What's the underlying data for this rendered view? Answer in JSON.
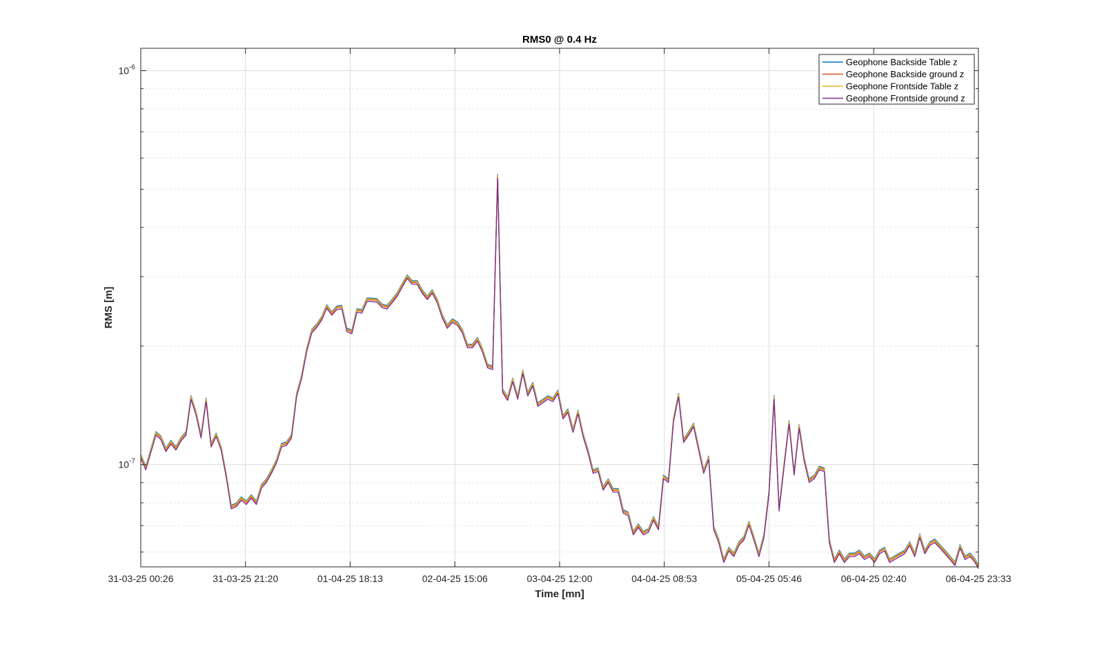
{
  "chart_data": {
    "type": "line",
    "title": "RMS0 @ 0.4 Hz",
    "xlabel": "Time [mn]",
    "ylabel": "RMS [m]",
    "yscale": "log",
    "ylim": [
      5.5e-08,
      1.14e-06
    ],
    "xlim": [
      0,
      1
    ],
    "grid": true,
    "legend_position": "top-right",
    "x_tick_labels": [
      "31-03-25 00:26",
      "31-03-25 21:20",
      "01-04-25 18:13",
      "02-04-25 15:06",
      "03-04-25 12:00",
      "04-04-25 08:53",
      "05-04-25 05:46",
      "06-04-25 02:40",
      "06-04-25 23:33"
    ],
    "y_ticks": [
      {
        "value": 1e-07,
        "base": "10",
        "exp": "-7"
      },
      {
        "value": 1e-06,
        "base": "10",
        "exp": "-6"
      }
    ],
    "series": [
      {
        "name": "Geophone Backside Table z",
        "color": "#0072BD",
        "offset": 1.01
      },
      {
        "name": "Geophone Backside ground z",
        "color": "#D95319",
        "offset": 1.0
      },
      {
        "name": "Geophone Frontside Table z",
        "color": "#EDB120",
        "offset": 1.005
      },
      {
        "name": "Geophone Frontside ground z",
        "color": "#7E2F8E",
        "offset": 0.99
      }
    ],
    "base_curve": [
      [
        0.0,
        1.05e-07
      ],
      [
        0.006,
        9.8e-08
      ],
      [
        0.018,
        1.2e-07
      ],
      [
        0.024,
        1.17e-07
      ],
      [
        0.03,
        1.09e-07
      ],
      [
        0.036,
        1.14e-07
      ],
      [
        0.042,
        1.1e-07
      ],
      [
        0.048,
        1.16e-07
      ],
      [
        0.054,
        1.2e-07
      ],
      [
        0.06,
        1.48e-07
      ],
      [
        0.066,
        1.35e-07
      ],
      [
        0.072,
        1.18e-07
      ],
      [
        0.078,
        1.46e-07
      ],
      [
        0.084,
        1.12e-07
      ],
      [
        0.09,
        1.19e-07
      ],
      [
        0.096,
        1.1e-07
      ],
      [
        0.102,
        9.4e-08
      ],
      [
        0.108,
        7.8e-08
      ],
      [
        0.114,
        7.9e-08
      ],
      [
        0.12,
        8.2e-08
      ],
      [
        0.126,
        8e-08
      ],
      [
        0.132,
        8.3e-08
      ],
      [
        0.138,
        8e-08
      ],
      [
        0.144,
        8.8e-08
      ],
      [
        0.15,
        9.1e-08
      ],
      [
        0.156,
        9.6e-08
      ],
      [
        0.162,
        1.02e-07
      ],
      [
        0.168,
        1.12e-07
      ],
      [
        0.174,
        1.13e-07
      ],
      [
        0.18,
        1.18e-07
      ],
      [
        0.186,
        1.5e-07
      ],
      [
        0.192,
        1.67e-07
      ],
      [
        0.198,
        1.95e-07
      ],
      [
        0.204,
        2.18e-07
      ],
      [
        0.21,
        2.25e-07
      ],
      [
        0.216,
        2.35e-07
      ],
      [
        0.222,
        2.52e-07
      ],
      [
        0.228,
        2.42e-07
      ],
      [
        0.234,
        2.5e-07
      ],
      [
        0.24,
        2.51e-07
      ],
      [
        0.246,
        2.2e-07
      ],
      [
        0.252,
        2.17e-07
      ],
      [
        0.258,
        2.46e-07
      ],
      [
        0.264,
        2.45e-07
      ],
      [
        0.27,
        2.62e-07
      ],
      [
        0.276,
        2.62e-07
      ],
      [
        0.282,
        2.61e-07
      ],
      [
        0.288,
        2.53e-07
      ],
      [
        0.294,
        2.51e-07
      ],
      [
        0.3,
        2.6e-07
      ],
      [
        0.306,
        2.7e-07
      ],
      [
        0.312,
        2.85e-07
      ],
      [
        0.318,
        3e-07
      ],
      [
        0.324,
        2.9e-07
      ],
      [
        0.33,
        2.9e-07
      ],
      [
        0.336,
        2.75e-07
      ],
      [
        0.342,
        2.65e-07
      ],
      [
        0.348,
        2.75e-07
      ],
      [
        0.354,
        2.6e-07
      ],
      [
        0.36,
        2.38e-07
      ],
      [
        0.366,
        2.24e-07
      ],
      [
        0.372,
        2.32e-07
      ],
      [
        0.378,
        2.28e-07
      ],
      [
        0.384,
        2.18e-07
      ],
      [
        0.39,
        2e-07
      ],
      [
        0.396,
        2e-07
      ],
      [
        0.402,
        2.08e-07
      ],
      [
        0.408,
        1.95e-07
      ],
      [
        0.414,
        1.78e-07
      ],
      [
        0.42,
        1.76e-07
      ],
      [
        0.426,
        5.4e-07
      ],
      [
        0.432,
        1.54e-07
      ],
      [
        0.438,
        1.47e-07
      ],
      [
        0.444,
        1.64e-07
      ],
      [
        0.45,
        1.48e-07
      ],
      [
        0.456,
        1.72e-07
      ],
      [
        0.462,
        1.51e-07
      ],
      [
        0.468,
        1.6e-07
      ],
      [
        0.474,
        1.42e-07
      ],
      [
        0.48,
        1.45e-07
      ],
      [
        0.486,
        1.48e-07
      ],
      [
        0.492,
        1.46e-07
      ],
      [
        0.498,
        1.53e-07
      ],
      [
        0.504,
        1.32e-07
      ],
      [
        0.51,
        1.37e-07
      ],
      [
        0.516,
        1.22e-07
      ],
      [
        0.522,
        1.36e-07
      ],
      [
        0.528,
        1.19e-07
      ],
      [
        0.534,
        1.08e-07
      ],
      [
        0.54,
        9.6e-08
      ],
      [
        0.546,
        9.7e-08
      ],
      [
        0.552,
        8.7e-08
      ],
      [
        0.558,
        9.1e-08
      ],
      [
        0.564,
        8.6e-08
      ],
      [
        0.57,
        8.6e-08
      ],
      [
        0.576,
        7.6e-08
      ],
      [
        0.582,
        7.5e-08
      ],
      [
        0.588,
        6.7e-08
      ],
      [
        0.594,
        7e-08
      ],
      [
        0.6,
        6.7e-08
      ],
      [
        0.606,
        6.8e-08
      ],
      [
        0.612,
        7.3e-08
      ],
      [
        0.618,
        6.9e-08
      ],
      [
        0.624,
        9.3e-08
      ],
      [
        0.63,
        9.1e-08
      ],
      [
        0.636,
        1.3e-07
      ],
      [
        0.642,
        1.5e-07
      ],
      [
        0.648,
        1.15e-07
      ],
      [
        0.654,
        1.2e-07
      ],
      [
        0.66,
        1.26e-07
      ],
      [
        0.666,
        1.1e-07
      ],
      [
        0.672,
        9.6e-08
      ],
      [
        0.678,
        1.04e-07
      ],
      [
        0.684,
        6.9e-08
      ],
      [
        0.69,
        6.4e-08
      ],
      [
        0.696,
        5.7e-08
      ],
      [
        0.702,
        6.1e-08
      ],
      [
        0.708,
        5.9e-08
      ],
      [
        0.714,
        6.3e-08
      ],
      [
        0.72,
        6.5e-08
      ],
      [
        0.726,
        7.1e-08
      ],
      [
        0.732,
        6.5e-08
      ],
      [
        0.738,
        5.9e-08
      ],
      [
        0.744,
        6.6e-08
      ],
      [
        0.75,
        8.5e-08
      ],
      [
        0.756,
        1.48e-07
      ],
      [
        0.762,
        7.7e-08
      ],
      [
        0.768,
        1e-07
      ],
      [
        0.774,
        1.28e-07
      ],
      [
        0.78,
        9.5e-08
      ],
      [
        0.786,
        1.25e-07
      ],
      [
        0.792,
        1.03e-07
      ],
      [
        0.798,
        9.1e-08
      ],
      [
        0.804,
        9.3e-08
      ],
      [
        0.81,
        9.8e-08
      ],
      [
        0.816,
        9.7e-08
      ],
      [
        0.822,
        6.4e-08
      ],
      [
        0.828,
        5.7e-08
      ],
      [
        0.834,
        6e-08
      ],
      [
        0.84,
        5.7e-08
      ],
      [
        0.846,
        5.9e-08
      ],
      [
        0.852,
        5.9e-08
      ],
      [
        0.858,
        6e-08
      ],
      [
        0.864,
        5.8e-08
      ],
      [
        0.87,
        5.9e-08
      ],
      [
        0.876,
        5.7e-08
      ],
      [
        0.882,
        6e-08
      ],
      [
        0.888,
        6.1e-08
      ],
      [
        0.894,
        5.7e-08
      ],
      [
        0.9,
        5.8e-08
      ],
      [
        0.906,
        5.9e-08
      ],
      [
        0.912,
        6e-08
      ],
      [
        0.918,
        6.3e-08
      ],
      [
        0.924,
        5.9e-08
      ],
      [
        0.93,
        6.6e-08
      ],
      [
        0.936,
        6e-08
      ],
      [
        0.942,
        6.3e-08
      ],
      [
        0.948,
        6.4e-08
      ],
      [
        0.954,
        6.2e-08
      ],
      [
        0.96,
        6e-08
      ],
      [
        0.966,
        5.8e-08
      ],
      [
        0.972,
        5.6e-08
      ],
      [
        0.978,
        6.2e-08
      ],
      [
        0.984,
        5.8e-08
      ],
      [
        0.99,
        5.9e-08
      ],
      [
        0.996,
        5.7e-08
      ],
      [
        1.0,
        5.5e-08
      ]
    ]
  }
}
